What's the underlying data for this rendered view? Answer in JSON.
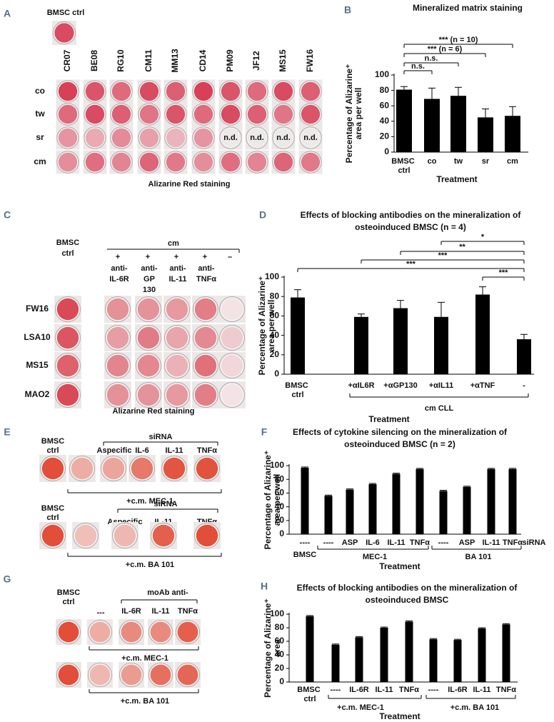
{
  "panel_labels": [
    "A",
    "B",
    "C",
    "D",
    "E",
    "F",
    "G",
    "H"
  ],
  "panel_a": {
    "control": "BMSC ctrl",
    "columns": [
      "CR07",
      "BE08",
      "RG10",
      "CM11",
      "MM13",
      "CD14",
      "PM09",
      "JF12",
      "MS15",
      "FW16"
    ],
    "rows": [
      "co",
      "tw",
      "sr",
      "cm"
    ],
    "not_determined": [
      "n.d.",
      "n.d.",
      "n.d.",
      "n.d."
    ],
    "caption": "Alizarine Red staining"
  },
  "panel_c": {
    "control": [
      "BMSC",
      "ctrl"
    ],
    "treatment": "cm",
    "signs": [
      "+",
      "+",
      "+",
      "+",
      "–"
    ],
    "antibodies": [
      [
        "anti-",
        "IL-6R"
      ],
      [
        "anti-",
        "GP",
        "130"
      ],
      [
        "anti-",
        "IL-11"
      ],
      [
        "anti-",
        "TNFα"
      ]
    ],
    "rows": [
      "FW16",
      "LSA10",
      "MS15",
      "MAO2"
    ],
    "caption": "Alizarine Red staining"
  },
  "panel_e": {
    "rows": [
      {
        "control": [
          "BMSC",
          "ctrl"
        ],
        "group": "siRNA",
        "labels": [
          "Aspecific",
          "IL-6",
          "IL-11",
          "TNFα"
        ],
        "medium": "+c.m. MEC-1"
      },
      {
        "control": [
          "BMSC",
          "ctrl"
        ],
        "group": "siRNA",
        "labels": [
          "Aspecific",
          "IL-11",
          "TNFα"
        ],
        "medium": "+c.m. BA 101"
      }
    ]
  },
  "panel_g": {
    "control": [
      "BMSC",
      "ctrl"
    ],
    "untreated": "---",
    "group": "moAb anti-",
    "labels": [
      "IL-6R",
      "IL-11",
      "TNFα"
    ],
    "media": [
      "+c.m. MEC-1",
      "+c.m. BA 101"
    ]
  },
  "chart_data": [
    {
      "type": "bar",
      "title": [
        "Mineralized matrix staining"
      ],
      "ylabel": [
        "Percentage of Alizarine⁺",
        "area per well"
      ],
      "xlabel": "Treatment",
      "categories": [
        "BMSC ctrl",
        "co",
        "tw",
        "sr",
        "cm"
      ],
      "series": [
        {
          "values": [
            81,
            69,
            73,
            45,
            47
          ],
          "errors": [
            4,
            14,
            11,
            11,
            12
          ],
          "color": "#000000"
        }
      ],
      "ylim": [
        0,
        100
      ],
      "yticks": [
        0,
        20,
        40,
        60,
        80,
        100
      ],
      "annotations": [
        "n.s.",
        "n.s.",
        "*** (n = 6)",
        "*** (n = 10)"
      ],
      "group_labels": []
    },
    {
      "type": "bar",
      "title": [
        "Effects of blocking antibodies on the mineralization of",
        "osteoinduced BMSC (n = 4)"
      ],
      "ylabel": [
        "Percentage of Alizarine⁺",
        "area  per well"
      ],
      "xlabel": "Treatment",
      "categories": [
        "BMSC ctrl",
        "+αIL6R",
        "+αGP130",
        "+αIL11",
        "+αTNF",
        "-"
      ],
      "series": [
        {
          "values": [
            79,
            59,
            68,
            59,
            82,
            36
          ],
          "errors": [
            8,
            3,
            8,
            15,
            8,
            5
          ],
          "color": "#000000"
        }
      ],
      "ylim": [
        0,
        100
      ],
      "yticks": [
        0,
        20,
        40,
        60,
        80,
        100
      ],
      "annotations": [
        "*",
        "**",
        "***",
        "***",
        "***"
      ],
      "group_labels": [
        "cm CLL"
      ]
    },
    {
      "type": "bar",
      "title": [
        "Effects of cytokine silencing on the mineralization of",
        "osteoinduced BMSC (n = 2)"
      ],
      "ylabel": [
        "Percentage of Alizarine⁺",
        "area per well"
      ],
      "xlabel": "Treatment",
      "categories": [
        "----",
        "----",
        "ASP",
        "IL-6",
        "IL-11",
        "TNFα",
        "----",
        "ASP",
        "IL-11",
        "TNFα"
      ],
      "series": [
        {
          "values": [
            97,
            56,
            65,
            73,
            88,
            95,
            63,
            69,
            95,
            95
          ],
          "errors": [
            1,
            1,
            1,
            1,
            1,
            1,
            1,
            1,
            1,
            1
          ],
          "color": "#000000"
        }
      ],
      "ylim": [
        0,
        100
      ],
      "yticks": [
        0,
        20,
        40,
        60,
        80,
        100
      ],
      "annotations": [],
      "group_labels": [
        "siRNA",
        "BMSC",
        "MEC-1",
        "BA 101"
      ]
    },
    {
      "type": "bar",
      "title": [
        "Effects of blocking antibodies on the mineralization of",
        "osteoinduced BMSC"
      ],
      "ylabel": [
        "Percentage of Alizarine⁺",
        "area"
      ],
      "xlabel": "Treatment",
      "categories": [
        "BMSC ctrl",
        "----",
        "IL-6R",
        "IL-11",
        "TNFα",
        "----",
        "IL-6R",
        "IL-11",
        "TNFα"
      ],
      "series": [
        {
          "values": [
            97,
            55,
            66,
            80,
            89,
            63,
            62,
            79,
            85
          ],
          "errors": [
            1,
            1,
            1,
            1,
            1,
            1,
            1,
            1,
            1
          ],
          "color": "#000000"
        }
      ],
      "ylim": [
        0,
        100
      ],
      "yticks": [
        0,
        20,
        40,
        60,
        80,
        100
      ],
      "annotations": [],
      "group_labels": [
        "+c.m. MEC-1",
        "+c.m. BA 101"
      ]
    }
  ]
}
